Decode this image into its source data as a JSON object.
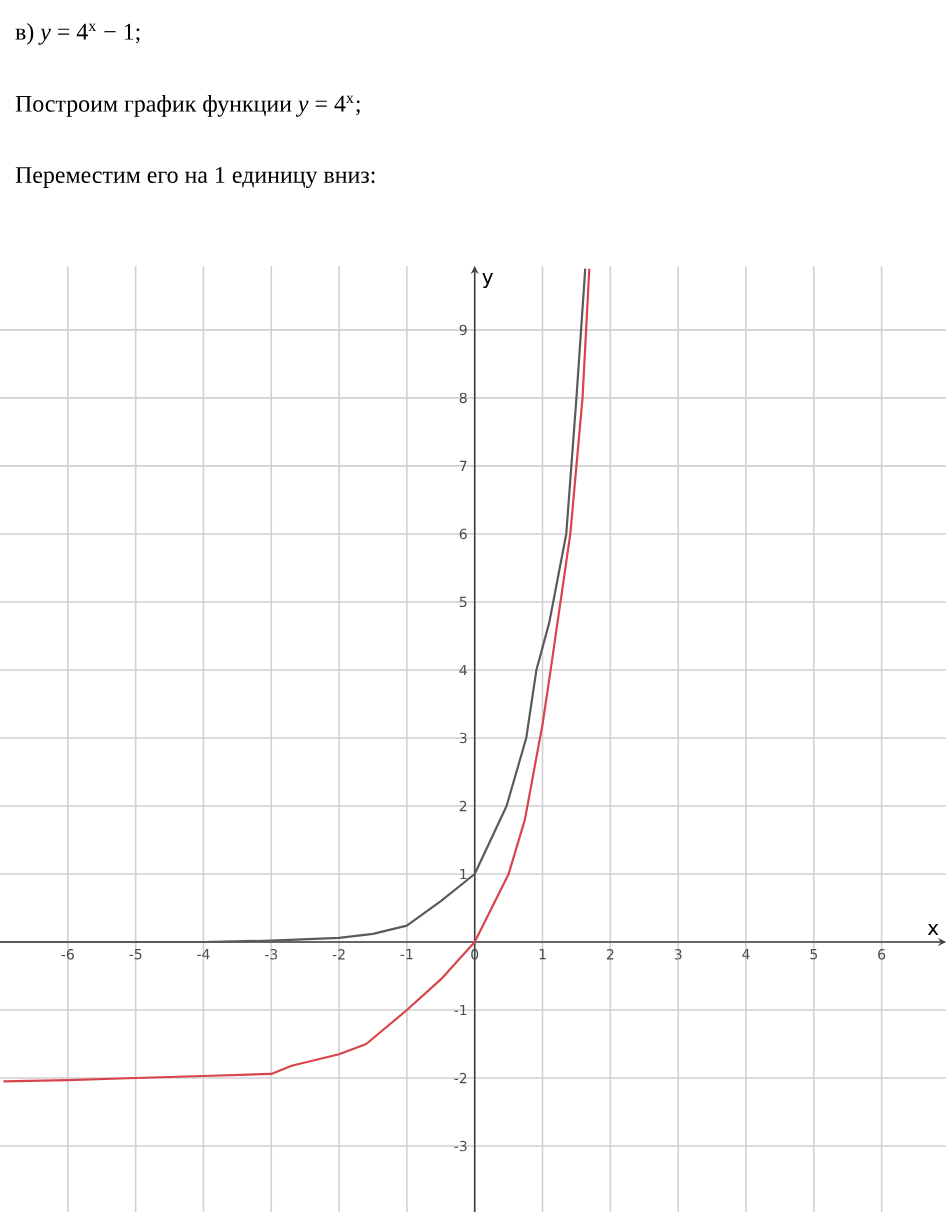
{
  "chart_data": {
    "type": "line",
    "title": "в) *y* = 4$^{x}$ − 1;",
    "subtitle": "Построим график функции *y* = 4$^{x}$;",
    "annotations": [
      "Переместим его на 1 единицу вниз:"
    ],
    "xlabel": "x",
    "ylabel": "y",
    "xlim": [
      -7,
      6.95
    ],
    "ylim": [
      -3.97,
      9.94
    ],
    "xticks": [
      -6,
      -5,
      -4,
      -3,
      -2,
      -1,
      0,
      1,
      2,
      3,
      4,
      5,
      6
    ],
    "yticks": [
      -3,
      -2,
      -1,
      {
        "value": 0,
        "label": null
      },
      1,
      2,
      3,
      4,
      5,
      6,
      7,
      8,
      9
    ],
    "grid": true,
    "series": [
      {
        "color": "#5a5a5a",
        "x": [
          -7,
          -6,
          -5,
          -4,
          -3,
          -2,
          -1.5,
          -1,
          -0.5,
          0,
          0.47,
          0.76,
          0.91,
          1.1,
          1.35,
          1.5,
          1.63
        ],
        "values": [
          0,
          0,
          0,
          0,
          0.02,
          0.06,
          0.12,
          0.24,
          0.6,
          1,
          2,
          3,
          4,
          4.7,
          6,
          8,
          9.9
        ]
      },
      {
        "color": "#d9434b",
        "x": [
          -6.95,
          -6,
          -5,
          -4,
          -3,
          -2.7,
          -2,
          -1.6,
          -1,
          -0.5,
          0,
          0.5,
          0.74,
          1.0,
          1.12,
          1.41,
          1.59,
          1.69
        ],
        "values": [
          -2.05,
          -2.03,
          -2.0,
          -1.97,
          -1.94,
          -1.82,
          -1.65,
          -1.5,
          -1.0,
          -0.55,
          0,
          1.0,
          1.8,
          3.2,
          4,
          6,
          8,
          9.9
        ]
      }
    ]
  }
}
